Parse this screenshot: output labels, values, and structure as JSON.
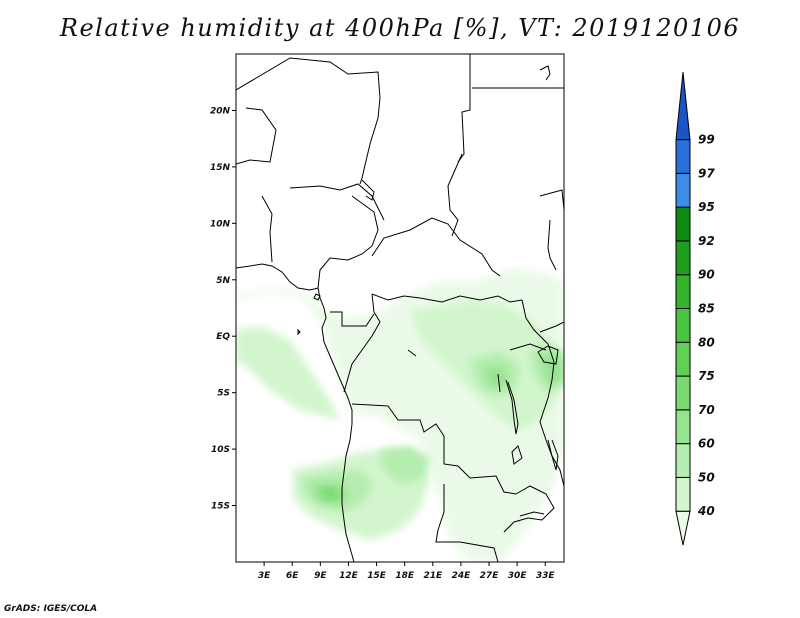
{
  "title": "Relative humidity at 400hPa [%], VT: 2019120106",
  "footer": "GrADS: IGES/COLA",
  "map": {
    "lon_range": [
      0,
      35
    ],
    "lat_range": [
      -20,
      25
    ],
    "lat_ticks": [
      {
        "value": 20,
        "label": "20N"
      },
      {
        "value": 15,
        "label": "15N"
      },
      {
        "value": 10,
        "label": "10N"
      },
      {
        "value": 5,
        "label": "5N"
      },
      {
        "value": 0,
        "label": "EQ"
      },
      {
        "value": -5,
        "label": "5S"
      },
      {
        "value": -10,
        "label": "10S"
      },
      {
        "value": -15,
        "label": "15S"
      }
    ],
    "lon_ticks": [
      {
        "value": 3,
        "label": "3E"
      },
      {
        "value": 6,
        "label": "6E"
      },
      {
        "value": 9,
        "label": "9E"
      },
      {
        "value": 12,
        "label": "12E"
      },
      {
        "value": 15,
        "label": "15E"
      },
      {
        "value": 18,
        "label": "18E"
      },
      {
        "value": 21,
        "label": "21E"
      },
      {
        "value": 24,
        "label": "24E"
      },
      {
        "value": 27,
        "label": "27E"
      },
      {
        "value": 30,
        "label": "30E"
      },
      {
        "value": 33,
        "label": "33E"
      }
    ]
  },
  "colorbar": {
    "levels": [
      "40",
      "50",
      "60",
      "70",
      "75",
      "80",
      "85",
      "90",
      "92",
      "95",
      "97",
      "99"
    ],
    "colors": [
      "#ebfae8",
      "#d2f5cd",
      "#b4edaf",
      "#96e48f",
      "#78da70",
      "#5fd155",
      "#46c53e",
      "#32b32a",
      "#1f9e1c",
      "#118a12",
      "#3d8ce8",
      "#2a70d8",
      "#1b55c4"
    ]
  },
  "colors": {
    "border": "#000000",
    "frame": "#000000"
  }
}
